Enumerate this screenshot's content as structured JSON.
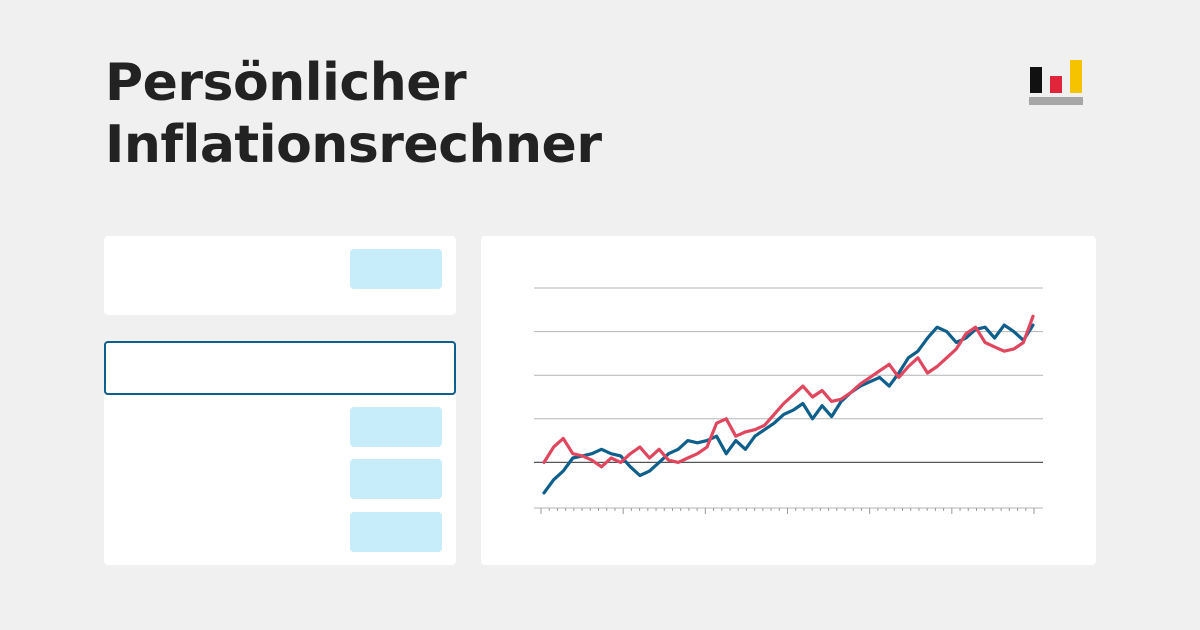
{
  "header": {
    "title_line1": "Persönlicher",
    "title_line2": "Inflationsrechner"
  },
  "logo": {
    "icon": "bar-chart-logo-icon",
    "colors": [
      "#111111",
      "#e0253a",
      "#f6c300",
      "#a6a6a6"
    ]
  },
  "form": {
    "input_value": "",
    "input_placeholder": ""
  },
  "colors": {
    "background": "#f0f0f0",
    "card": "#ffffff",
    "pill": "#c7ecfa",
    "input_border": "#0e5f8c",
    "series_blue": "#0e5f8c",
    "series_red": "#e0475f"
  },
  "chart_data": {
    "type": "line",
    "grid": true,
    "ylim": [
      -1,
      4
    ],
    "series": [
      {
        "color": "#0e5f8c",
        "values": [
          -0.7,
          -0.4,
          -0.2,
          0.1,
          0.15,
          0.2,
          0.3,
          0.2,
          0.15,
          -0.1,
          -0.3,
          -0.2,
          0.0,
          0.2,
          0.3,
          0.5,
          0.45,
          0.5,
          0.6,
          0.2,
          0.5,
          0.3,
          0.6,
          0.75,
          0.9,
          1.1,
          1.2,
          1.35,
          1.0,
          1.3,
          1.05,
          1.4,
          1.6,
          1.75,
          1.85,
          1.95,
          1.75,
          2.05,
          2.4,
          2.55,
          2.85,
          3.1,
          3.0,
          2.75,
          2.85,
          3.05,
          3.1,
          2.85,
          3.15,
          3.0,
          2.8,
          3.15
        ]
      },
      {
        "color": "#e0475f",
        "values": [
          0.0,
          0.35,
          0.55,
          0.2,
          0.15,
          0.05,
          -0.1,
          0.1,
          0.0,
          0.2,
          0.35,
          0.1,
          0.3,
          0.05,
          0.0,
          0.1,
          0.2,
          0.35,
          0.9,
          1.0,
          0.6,
          0.7,
          0.75,
          0.85,
          1.1,
          1.35,
          1.55,
          1.75,
          1.5,
          1.65,
          1.4,
          1.45,
          1.6,
          1.8,
          1.95,
          2.1,
          2.25,
          1.95,
          2.2,
          2.4,
          2.05,
          2.2,
          2.4,
          2.6,
          2.95,
          3.1,
          2.75,
          2.65,
          2.55,
          2.6,
          2.75,
          3.35
        ]
      }
    ]
  }
}
